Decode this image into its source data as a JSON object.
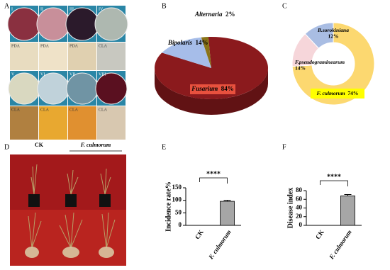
{
  "panel_a": {
    "label": "A",
    "photo_labels": [
      "I",
      "II",
      "III",
      "IV",
      "PDA",
      "PDA",
      "PDA",
      "CLA",
      "V",
      "VI",
      "VII",
      "VIII",
      "CLA",
      "CLA",
      "CLA",
      "CLA"
    ]
  },
  "panel_d": {
    "label": "D",
    "groups": [
      "CK",
      "F. culmorum"
    ]
  },
  "chart_data": [
    {
      "panel": "B",
      "type": "pie",
      "style": "3d",
      "categories": [
        "Fusarium",
        "Bipolaris",
        "Alternaria"
      ],
      "values": [
        84,
        14,
        2
      ],
      "value_labels": [
        "84%",
        "14%",
        "2%"
      ],
      "colors": [
        "#8b1a1d",
        "#a6bde9",
        "#8a7418"
      ]
    },
    {
      "panel": "C",
      "type": "donut",
      "categories": [
        "F. culmorum",
        "F.pseudograminearum",
        "B.sorokiniana"
      ],
      "values": [
        74,
        14,
        12
      ],
      "value_labels": [
        "74%",
        "14%",
        "12%"
      ],
      "colors": [
        "#fcd870",
        "#f6d6da",
        "#a9bde3"
      ]
    },
    {
      "panel": "E",
      "type": "bar",
      "y_label": "Incidence rate%",
      "categories": [
        "CK",
        "F. culmorum"
      ],
      "values": [
        0,
        96
      ],
      "errors": [
        null,
        4
      ],
      "color": "#a6a6a6",
      "ylim": [
        0,
        150
      ],
      "yticks": [
        0,
        50,
        100,
        150
      ],
      "annotation": "****"
    },
    {
      "panel": "F",
      "type": "bar",
      "y_label": "Disease index",
      "categories": [
        "CK",
        "F. culmorum"
      ],
      "values": [
        0,
        68
      ],
      "errors": [
        null,
        3
      ],
      "color": "#a6a6a6",
      "ylim": [
        0,
        80
      ],
      "yticks": [
        0,
        20,
        40,
        60,
        80
      ],
      "annotation": "****"
    }
  ]
}
